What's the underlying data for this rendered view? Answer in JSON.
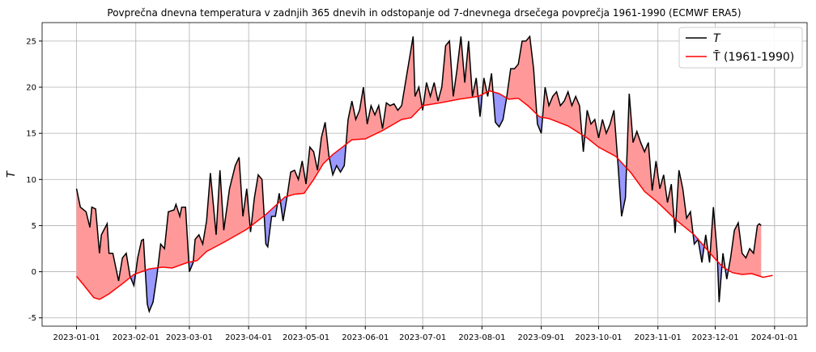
{
  "chart_data": {
    "type": "line",
    "title": "Povprečna dnevna temperatura v zadnjih 365 dnevih in odstopanje od 7-dnevnega drsečega povprečja 1961-1990 (ECMWF ERA5)",
    "y_label": "T",
    "xlim": [
      "2022-12-14",
      "2024-01-18"
    ],
    "xticks": [
      "2023-01-01",
      "2023-02-01",
      "2023-03-01",
      "2023-04-01",
      "2023-05-01",
      "2023-06-01",
      "2023-07-01",
      "2023-08-01",
      "2023-09-01",
      "2023-10-01",
      "2023-11-01",
      "2023-12-01",
      "2024-01-01"
    ],
    "ylim": [
      -5.9,
      27
    ],
    "yticks": [
      -5,
      0,
      5,
      10,
      15,
      20,
      25
    ],
    "grid": true,
    "legend": "upper right",
    "fill_above": "#ff9999",
    "fill_below": "#9999ff",
    "series": [
      {
        "name": "T",
        "color": "#000000",
        "x": [
          "2023-01-01",
          "2023-01-03",
          "2023-01-06",
          "2023-01-08",
          "2023-01-09",
          "2023-01-11",
          "2023-01-13",
          "2023-01-14",
          "2023-01-17",
          "2023-01-18",
          "2023-01-20",
          "2023-01-23",
          "2023-01-25",
          "2023-01-27",
          "2023-01-29",
          "2023-01-31",
          "2023-02-02",
          "2023-02-04",
          "2023-02-05",
          "2023-02-07",
          "2023-02-08",
          "2023-02-10",
          "2023-02-12",
          "2023-02-14",
          "2023-02-16",
          "2023-02-18",
          "2023-02-21",
          "2023-02-22",
          "2023-02-24",
          "2023-02-25",
          "2023-02-27",
          "2023-03-01",
          "2023-03-03",
          "2023-03-04",
          "2023-03-06",
          "2023-03-08",
          "2023-03-10",
          "2023-03-12",
          "2023-03-15",
          "2023-03-17",
          "2023-03-19",
          "2023-03-22",
          "2023-03-25",
          "2023-03-27",
          "2023-03-29",
          "2023-03-31",
          "2023-04-02",
          "2023-04-04",
          "2023-04-06",
          "2023-04-08",
          "2023-04-10",
          "2023-04-11",
          "2023-04-13",
          "2023-04-15",
          "2023-04-17",
          "2023-04-19",
          "2023-04-21",
          "2023-04-23",
          "2023-04-25",
          "2023-04-27",
          "2023-04-29",
          "2023-05-01",
          "2023-05-03",
          "2023-05-05",
          "2023-05-07",
          "2023-05-09",
          "2023-05-11",
          "2023-05-13",
          "2023-05-15",
          "2023-05-17",
          "2023-05-19",
          "2023-05-21",
          "2023-05-23",
          "2023-05-25",
          "2023-05-27",
          "2023-05-29",
          "2023-05-31",
          "2023-06-02",
          "2023-06-04",
          "2023-06-06",
          "2023-06-08",
          "2023-06-10",
          "2023-06-12",
          "2023-06-14",
          "2023-06-16",
          "2023-06-18",
          "2023-06-20",
          "2023-06-22",
          "2023-06-24",
          "2023-06-26",
          "2023-06-27",
          "2023-06-29",
          "2023-07-01",
          "2023-07-03",
          "2023-07-05",
          "2023-07-07",
          "2023-07-09",
          "2023-07-11",
          "2023-07-13",
          "2023-07-15",
          "2023-07-17",
          "2023-07-19",
          "2023-07-21",
          "2023-07-23",
          "2023-07-25",
          "2023-07-27",
          "2023-07-29",
          "2023-07-31",
          "2023-08-02",
          "2023-08-04",
          "2023-08-06",
          "2023-08-08",
          "2023-08-10",
          "2023-08-12",
          "2023-08-14",
          "2023-08-16",
          "2023-08-18",
          "2023-08-20",
          "2023-08-22",
          "2023-08-24",
          "2023-08-26",
          "2023-08-28",
          "2023-08-30",
          "2023-09-01",
          "2023-09-03",
          "2023-09-05",
          "2023-09-07",
          "2023-09-09",
          "2023-09-11",
          "2023-09-13",
          "2023-09-15",
          "2023-09-17",
          "2023-09-19",
          "2023-09-21",
          "2023-09-23",
          "2023-09-25",
          "2023-09-27",
          "2023-09-29",
          "2023-10-01",
          "2023-10-03",
          "2023-10-05",
          "2023-10-07",
          "2023-10-09",
          "2023-10-11",
          "2023-10-13",
          "2023-10-15",
          "2023-10-17",
          "2023-10-19",
          "2023-10-21",
          "2023-10-23",
          "2023-10-25",
          "2023-10-27",
          "2023-10-29",
          "2023-10-31",
          "2023-11-02",
          "2023-11-04",
          "2023-11-06",
          "2023-11-08",
          "2023-11-10",
          "2023-11-12",
          "2023-11-14",
          "2023-11-16",
          "2023-11-18",
          "2023-11-20",
          "2023-11-22",
          "2023-11-24",
          "2023-11-26",
          "2023-11-28",
          "2023-11-30",
          "2023-12-02",
          "2023-12-03",
          "2023-12-05",
          "2023-12-07",
          "2023-12-09",
          "2023-12-11",
          "2023-12-13",
          "2023-12-15",
          "2023-12-17",
          "2023-12-19",
          "2023-12-21",
          "2023-12-23",
          "2023-12-24",
          "2023-12-25"
        ],
        "values": [
          9,
          7,
          6.5,
          4.8,
          7,
          6.8,
          2,
          4,
          5.2,
          2,
          2,
          -1,
          1.5,
          2,
          -0.5,
          -1.5,
          1.5,
          3.4,
          3.5,
          -3.5,
          -4.3,
          -3.3,
          -0.5,
          3,
          2.5,
          6.5,
          6.7,
          7.3,
          6,
          7,
          7,
          0,
          1,
          3.5,
          4,
          3,
          5.5,
          10.7,
          4,
          11,
          4.5,
          9,
          11.5,
          12.4,
          6,
          9,
          4.3,
          8,
          10.5,
          10,
          3,
          2.7,
          6,
          6,
          8.5,
          5.5,
          8,
          10.8,
          11,
          10,
          12,
          9.5,
          13.5,
          13,
          11,
          14.5,
          16.2,
          12.5,
          10.5,
          11.5,
          10.8,
          11.5,
          16.5,
          18.5,
          16.5,
          17.5,
          20,
          16,
          18,
          17,
          18,
          15.5,
          18.3,
          18,
          18.2,
          17.5,
          18,
          20.5,
          23,
          25.5,
          19,
          20,
          17.5,
          20.5,
          19,
          20.5,
          18.5,
          20,
          24.5,
          25,
          19,
          22,
          25.5,
          20.5,
          25,
          19,
          21,
          16.8,
          21,
          19,
          21.5,
          16.2,
          15.7,
          16.5,
          19,
          22,
          22,
          22.5,
          25,
          25,
          25.5,
          22,
          16,
          15,
          20,
          18,
          19,
          19.5,
          18,
          18.5,
          19.5,
          18,
          19,
          18,
          13,
          17.5,
          16,
          16.5,
          14.5,
          16.5,
          15,
          16,
          17.5,
          12,
          6,
          8,
          19.3,
          14,
          15.2,
          14,
          13,
          14,
          8.8,
          12,
          9,
          10.5,
          7.5,
          9.5,
          4.2,
          11,
          9,
          5.8,
          6.5,
          3,
          3.5,
          1,
          4,
          1,
          7,
          2,
          -3.3,
          2,
          -0.8,
          1.5,
          4.5,
          5.3,
          2,
          1.5,
          2.5,
          2,
          5,
          5.2,
          5
        ]
      },
      {
        "name": "T̄ (1961-1990)",
        "color": "#ff0000",
        "x": [
          "2023-01-01",
          "2023-01-05",
          "2023-01-10",
          "2023-01-13",
          "2023-01-18",
          "2023-01-25",
          "2023-01-31",
          "2023-02-08",
          "2023-02-15",
          "2023-02-20",
          "2023-02-28",
          "2023-03-05",
          "2023-03-10",
          "2023-03-20",
          "2023-03-31",
          "2023-04-10",
          "2023-04-20",
          "2023-04-25",
          "2023-04-30",
          "2023-05-05",
          "2023-05-10",
          "2023-05-15",
          "2023-05-20",
          "2023-05-25",
          "2023-06-01",
          "2023-06-10",
          "2023-06-20",
          "2023-06-25",
          "2023-07-01",
          "2023-07-10",
          "2023-07-20",
          "2023-07-30",
          "2023-08-05",
          "2023-08-10",
          "2023-08-15",
          "2023-08-20",
          "2023-08-25",
          "2023-08-31",
          "2023-09-05",
          "2023-09-15",
          "2023-09-25",
          "2023-10-01",
          "2023-10-10",
          "2023-10-18",
          "2023-10-25",
          "2023-11-01",
          "2023-11-10",
          "2023-11-20",
          "2023-11-30",
          "2023-12-05",
          "2023-12-10",
          "2023-12-15",
          "2023-12-20",
          "2023-12-26",
          "2023-12-31"
        ],
        "values": [
          -0.5,
          -1.5,
          -2.8,
          -3,
          -2.4,
          -1.3,
          -0.3,
          0.3,
          0.5,
          0.4,
          1,
          1.2,
          2.2,
          3.3,
          4.6,
          6.2,
          8.1,
          8.4,
          8.5,
          10,
          11.7,
          12.7,
          13.5,
          14.3,
          14.4,
          15.3,
          16.5,
          16.7,
          18,
          18.3,
          18.7,
          19,
          19.6,
          19.3,
          18.7,
          18.8,
          18,
          16.8,
          16.6,
          15.8,
          14.5,
          13.5,
          12.5,
          10.7,
          8.7,
          7.5,
          5.7,
          4,
          1.6,
          0.5,
          -0.1,
          -0.3,
          -0.2,
          -0.6,
          -0.4
        ]
      }
    ]
  }
}
